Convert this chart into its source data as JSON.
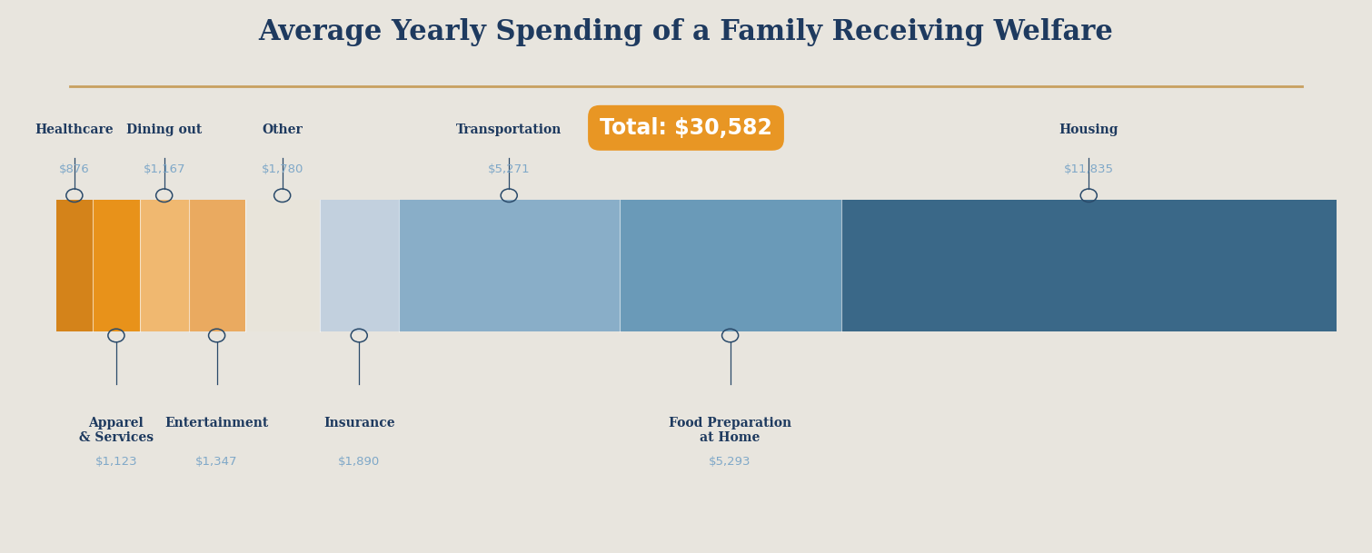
{
  "title": "Average Yearly Spending of a Family Receiving Welfare",
  "total_label": "Total: $30,582",
  "background_color": "#e8e5de",
  "title_color": "#1e3a5f",
  "categories": [
    {
      "name": "Healthcare",
      "value": 876,
      "label": "$876",
      "color": "#d4831a",
      "position": "above"
    },
    {
      "name": "Apparel\n& Services",
      "value": 1123,
      "label": "$1,123",
      "color": "#e8921a",
      "position": "below"
    },
    {
      "name": "Dining out",
      "value": 1167,
      "label": "$1,167",
      "color": "#f0b870",
      "position": "above"
    },
    {
      "name": "Entertainment",
      "value": 1347,
      "label": "$1,347",
      "color": "#eaaa60",
      "position": "below"
    },
    {
      "name": "Other",
      "value": 1780,
      "label": "$1,780",
      "color": "#e8e4da",
      "position": "above"
    },
    {
      "name": "Insurance",
      "value": 1890,
      "label": "$1,890",
      "color": "#c2d0de",
      "position": "below"
    },
    {
      "name": "Transportation",
      "value": 5271,
      "label": "$5,271",
      "color": "#89aec8",
      "position": "above"
    },
    {
      "name": "Food Preparation\nat Home",
      "value": 5293,
      "label": "$5,293",
      "color": "#6a9ab8",
      "position": "below"
    },
    {
      "name": "Housing",
      "value": 11835,
      "label": "$11,835",
      "color": "#3a6888",
      "position": "above"
    }
  ],
  "total_bg": "#e8921a",
  "total_text_color": "#ffffff",
  "label_color": "#1e3a5f",
  "value_color": "#7fa8c8",
  "underline_color": "#c8a060",
  "connector_color": "#2a4a6a"
}
